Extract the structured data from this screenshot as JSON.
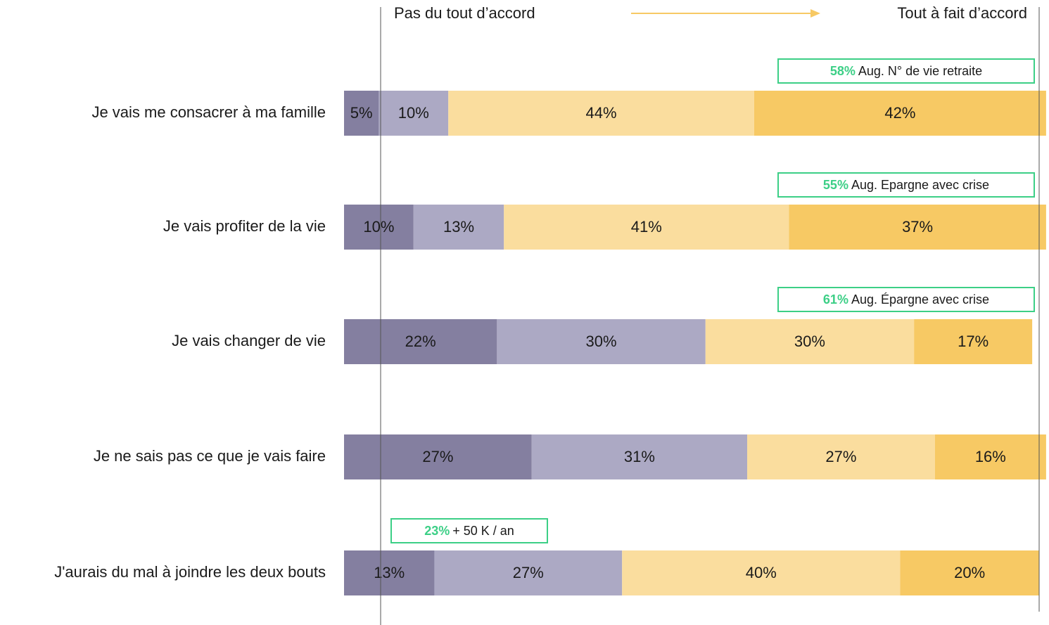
{
  "chart_data": {
    "type": "bar",
    "orientation": "horizontal",
    "stacked": true,
    "left_label": "Pas du tout d’accord",
    "right_label": "Tout à fait d’accord",
    "categories": [
      "Je vais me consacrer à ma famille",
      "Je vais profiter de la vie",
      "Je vais changer de vie",
      "Je ne sais pas ce que je vais faire",
      "J'aurais du mal à joindre les deux bouts"
    ],
    "series": [
      {
        "color": "#847fa0",
        "values": [
          5,
          10,
          22,
          27,
          13
        ],
        "value_labels": [
          "5%",
          "10%",
          "22%",
          "27%",
          "13%"
        ]
      },
      {
        "color": "#aca9c4",
        "values": [
          10,
          13,
          30,
          31,
          27
        ],
        "value_labels": [
          "10%",
          "13%",
          "30%",
          "31%",
          "27%"
        ]
      },
      {
        "color": "#fadd9e",
        "values": [
          44,
          41,
          30,
          27,
          40
        ],
        "value_labels": [
          "44%",
          "41%",
          "30%",
          "27%",
          "40%"
        ]
      },
      {
        "color": "#f7c964",
        "values": [
          42,
          37,
          17,
          16,
          20
        ],
        "value_labels": [
          "42%",
          "37%",
          "17%",
          "16%",
          "20%"
        ]
      }
    ],
    "annotations": [
      {
        "value": 58,
        "value_label": "58%",
        "text": "Aug. N° de vie retraite"
      },
      {
        "value": 55,
        "value_label": "55%",
        "text": "Aug. Epargne avec crise"
      },
      {
        "value": 61,
        "value_label": "61%",
        "text": "Aug. Épargne avec crise"
      },
      null,
      {
        "value": 23,
        "value_label": "23%",
        "text": "+ 50 K / an"
      }
    ],
    "annotation_color": "#3ccf86",
    "arrow_color": "#f7c964"
  }
}
